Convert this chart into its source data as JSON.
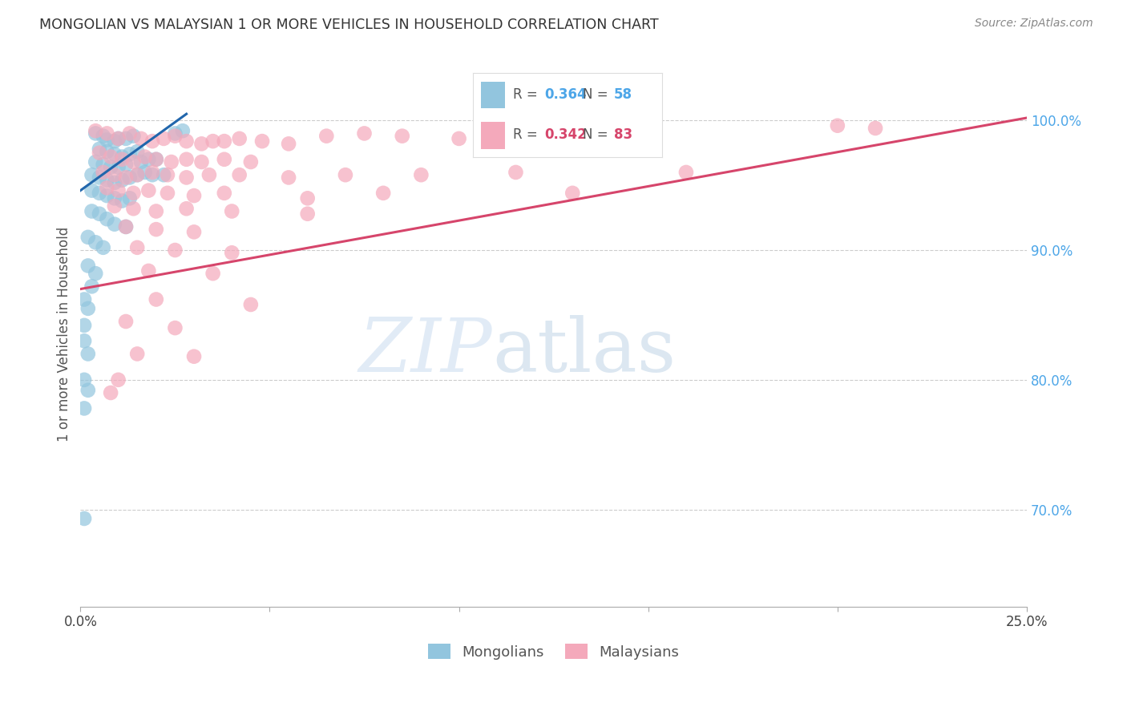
{
  "title": "MONGOLIAN VS MALAYSIAN 1 OR MORE VEHICLES IN HOUSEHOLD CORRELATION CHART",
  "source": "Source: ZipAtlas.com",
  "ylabel": "1 or more Vehicles in Household",
  "ytick_labels": [
    "70.0%",
    "80.0%",
    "90.0%",
    "100.0%"
  ],
  "ytick_values": [
    0.7,
    0.8,
    0.9,
    1.0
  ],
  "xmin": 0.0,
  "xmax": 0.25,
  "ymin": 0.625,
  "ymax": 1.045,
  "blue_color": "#92c5de",
  "pink_color": "#f4a9bb",
  "blue_line_color": "#2166ac",
  "pink_line_color": "#d6456b",
  "blue_scatter": [
    [
      0.004,
      0.99
    ],
    [
      0.006,
      0.988
    ],
    [
      0.007,
      0.985
    ],
    [
      0.009,
      0.984
    ],
    [
      0.01,
      0.986
    ],
    [
      0.012,
      0.986
    ],
    [
      0.014,
      0.988
    ],
    [
      0.005,
      0.978
    ],
    [
      0.007,
      0.976
    ],
    [
      0.009,
      0.974
    ],
    [
      0.011,
      0.972
    ],
    [
      0.013,
      0.974
    ],
    [
      0.015,
      0.976
    ],
    [
      0.004,
      0.968
    ],
    [
      0.006,
      0.966
    ],
    [
      0.008,
      0.964
    ],
    [
      0.01,
      0.964
    ],
    [
      0.012,
      0.966
    ],
    [
      0.016,
      0.968
    ],
    [
      0.018,
      0.97
    ],
    [
      0.02,
      0.97
    ],
    [
      0.003,
      0.958
    ],
    [
      0.005,
      0.956
    ],
    [
      0.007,
      0.954
    ],
    [
      0.009,
      0.952
    ],
    [
      0.011,
      0.954
    ],
    [
      0.013,
      0.956
    ],
    [
      0.015,
      0.958
    ],
    [
      0.017,
      0.96
    ],
    [
      0.019,
      0.958
    ],
    [
      0.022,
      0.958
    ],
    [
      0.025,
      0.99
    ],
    [
      0.027,
      0.992
    ],
    [
      0.003,
      0.946
    ],
    [
      0.005,
      0.944
    ],
    [
      0.007,
      0.942
    ],
    [
      0.009,
      0.94
    ],
    [
      0.011,
      0.938
    ],
    [
      0.013,
      0.94
    ],
    [
      0.003,
      0.93
    ],
    [
      0.005,
      0.928
    ],
    [
      0.007,
      0.924
    ],
    [
      0.009,
      0.92
    ],
    [
      0.012,
      0.918
    ],
    [
      0.002,
      0.91
    ],
    [
      0.004,
      0.906
    ],
    [
      0.006,
      0.902
    ],
    [
      0.002,
      0.888
    ],
    [
      0.004,
      0.882
    ],
    [
      0.003,
      0.872
    ],
    [
      0.001,
      0.862
    ],
    [
      0.002,
      0.855
    ],
    [
      0.001,
      0.842
    ],
    [
      0.001,
      0.83
    ],
    [
      0.002,
      0.82
    ],
    [
      0.001,
      0.8
    ],
    [
      0.002,
      0.792
    ],
    [
      0.001,
      0.778
    ],
    [
      0.001,
      0.693
    ]
  ],
  "pink_scatter": [
    [
      0.004,
      0.992
    ],
    [
      0.007,
      0.99
    ],
    [
      0.01,
      0.986
    ],
    [
      0.013,
      0.99
    ],
    [
      0.016,
      0.986
    ],
    [
      0.019,
      0.984
    ],
    [
      0.022,
      0.986
    ],
    [
      0.025,
      0.988
    ],
    [
      0.028,
      0.984
    ],
    [
      0.032,
      0.982
    ],
    [
      0.035,
      0.984
    ],
    [
      0.038,
      0.984
    ],
    [
      0.042,
      0.986
    ],
    [
      0.048,
      0.984
    ],
    [
      0.055,
      0.982
    ],
    [
      0.065,
      0.988
    ],
    [
      0.075,
      0.99
    ],
    [
      0.085,
      0.988
    ],
    [
      0.1,
      0.986
    ],
    [
      0.14,
      0.99
    ],
    [
      0.2,
      0.996
    ],
    [
      0.21,
      0.994
    ],
    [
      0.005,
      0.975
    ],
    [
      0.008,
      0.972
    ],
    [
      0.011,
      0.97
    ],
    [
      0.014,
      0.968
    ],
    [
      0.017,
      0.972
    ],
    [
      0.02,
      0.97
    ],
    [
      0.024,
      0.968
    ],
    [
      0.028,
      0.97
    ],
    [
      0.032,
      0.968
    ],
    [
      0.038,
      0.97
    ],
    [
      0.045,
      0.968
    ],
    [
      0.006,
      0.96
    ],
    [
      0.009,
      0.958
    ],
    [
      0.012,
      0.956
    ],
    [
      0.015,
      0.958
    ],
    [
      0.019,
      0.96
    ],
    [
      0.023,
      0.958
    ],
    [
      0.028,
      0.956
    ],
    [
      0.034,
      0.958
    ],
    [
      0.042,
      0.958
    ],
    [
      0.055,
      0.956
    ],
    [
      0.07,
      0.958
    ],
    [
      0.09,
      0.958
    ],
    [
      0.115,
      0.96
    ],
    [
      0.16,
      0.96
    ],
    [
      0.007,
      0.948
    ],
    [
      0.01,
      0.946
    ],
    [
      0.014,
      0.944
    ],
    [
      0.018,
      0.946
    ],
    [
      0.023,
      0.944
    ],
    [
      0.03,
      0.942
    ],
    [
      0.038,
      0.944
    ],
    [
      0.06,
      0.94
    ],
    [
      0.08,
      0.944
    ],
    [
      0.13,
      0.944
    ],
    [
      0.009,
      0.934
    ],
    [
      0.014,
      0.932
    ],
    [
      0.02,
      0.93
    ],
    [
      0.028,
      0.932
    ],
    [
      0.04,
      0.93
    ],
    [
      0.06,
      0.928
    ],
    [
      0.012,
      0.918
    ],
    [
      0.02,
      0.916
    ],
    [
      0.03,
      0.914
    ],
    [
      0.015,
      0.902
    ],
    [
      0.025,
      0.9
    ],
    [
      0.04,
      0.898
    ],
    [
      0.018,
      0.884
    ],
    [
      0.035,
      0.882
    ],
    [
      0.02,
      0.862
    ],
    [
      0.045,
      0.858
    ],
    [
      0.012,
      0.845
    ],
    [
      0.025,
      0.84
    ],
    [
      0.015,
      0.82
    ],
    [
      0.03,
      0.818
    ],
    [
      0.01,
      0.8
    ],
    [
      0.008,
      0.79
    ]
  ],
  "blue_line": [
    [
      0.0,
      0.946
    ],
    [
      0.028,
      1.005
    ]
  ],
  "pink_line": [
    [
      0.0,
      0.87
    ],
    [
      0.25,
      1.002
    ]
  ],
  "watermark_zip": "ZIP",
  "watermark_atlas": "atlas",
  "background_color": "#ffffff",
  "grid_color": "#cccccc"
}
